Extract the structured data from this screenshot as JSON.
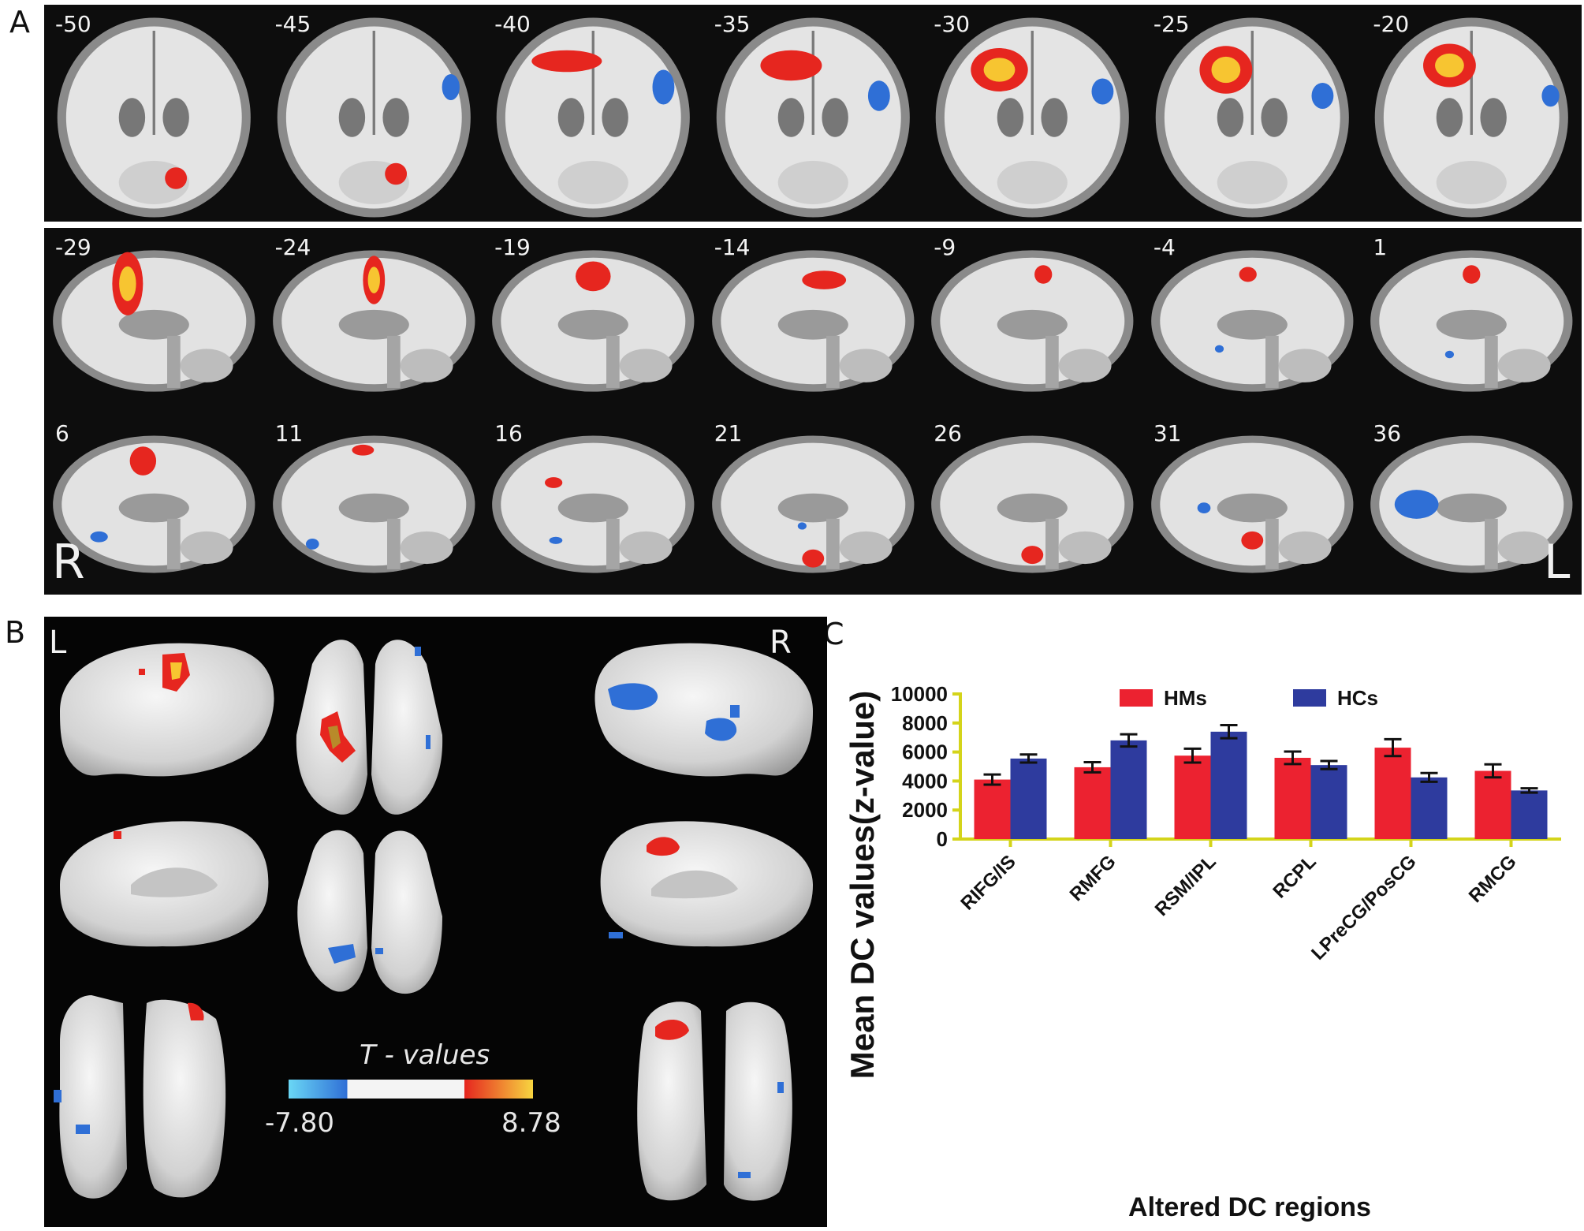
{
  "panel_labels": {
    "a": "A",
    "b": "B",
    "c": "C"
  },
  "panelA": {
    "rows": [
      {
        "name": "coronal",
        "slices": [
          "-50",
          "-45",
          "-40",
          "-35",
          "-30",
          "-25",
          "-20"
        ]
      },
      {
        "name": "sagittal-1",
        "slices": [
          "-29",
          "-24",
          "-19",
          "-14",
          "-9",
          "-4",
          "1"
        ]
      },
      {
        "name": "sagittal-2",
        "slices": [
          "6",
          "11",
          "16",
          "21",
          "26",
          "31",
          "36"
        ]
      }
    ],
    "orientation_right": "R",
    "orientation_left": "L"
  },
  "panelB": {
    "left_label": "L",
    "right_label": "R",
    "colorbar_title": "T - values",
    "colorbar_min": "-7.80",
    "colorbar_max": "8.78",
    "colors": {
      "negative": "#2f6fd6",
      "positive": "#e6261f",
      "peak": "#f7c531"
    }
  },
  "chart_data": {
    "type": "bar",
    "title": "",
    "xlabel": "Altered DC regions",
    "ylabel": "Mean DC values(z-value)",
    "categories": [
      "RIFG/IS",
      "RMFG",
      "RSM/IPL",
      "RCPL",
      "LPreCG/PosCG",
      "RMCG"
    ],
    "ylim": [
      0,
      10000
    ],
    "yticks": [
      "0",
      "2000",
      "4000",
      "6000",
      "8000",
      "10000"
    ],
    "legend": "top-center",
    "series": [
      {
        "name": "HMs",
        "color": "#ec2230",
        "values": [
          4100,
          4950,
          5750,
          5600,
          6300,
          4700
        ],
        "errors": [
          350,
          350,
          480,
          430,
          580,
          450
        ]
      },
      {
        "name": "HCs",
        "color": "#2e3b9e",
        "values": [
          5550,
          6800,
          7400,
          5100,
          4250,
          3350
        ],
        "errors": [
          280,
          420,
          450,
          280,
          300,
          150
        ]
      }
    ]
  }
}
